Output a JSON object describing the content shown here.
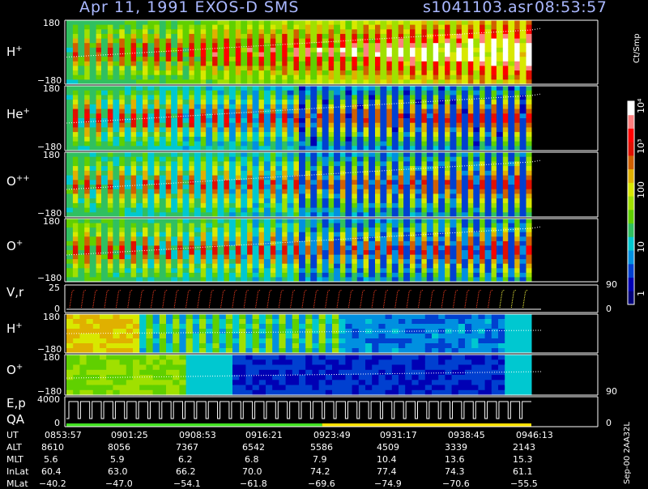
{
  "header": {
    "title": "Apr 11, 1991    EXOS-D SMS",
    "file": "s1041103.asr",
    "time": "08:53:57"
  },
  "colors": {
    "header_text": "#aab8ff",
    "axis": "#ffffff",
    "colormap": [
      "#00007a",
      "#0000b4",
      "#0040d0",
      "#0090e0",
      "#00c8d0",
      "#30c060",
      "#60d000",
      "#a0e000",
      "#d8e800",
      "#e0b000",
      "#d06000",
      "#e01000",
      "#ff0000",
      "#ff8080",
      "#ffffff"
    ]
  },
  "chart_data": {
    "type": "heatmap",
    "title": "Apr 11, 1991    EXOS-D SMS",
    "panels": [
      {
        "name": "H+",
        "label": "H",
        "sup": "+",
        "ytop": "180",
        "ybot": "−180"
      },
      {
        "name": "He+",
        "label": "He",
        "sup": "+",
        "ytop": "180",
        "ybot": "−180"
      },
      {
        "name": "O++",
        "label": "O",
        "sup": "++",
        "ytop": "180",
        "ybot": "−180"
      },
      {
        "name": "O+",
        "label": "O",
        "sup": "+",
        "ytop": "180",
        "ybot": "−180"
      },
      {
        "name": "V,r",
        "label": "V,r",
        "sup": "",
        "ytop": "25",
        "ybot": "0",
        "rtop": "90",
        "rbot": "0"
      },
      {
        "name": "H+ (lower)",
        "label": "H",
        "sup": "+",
        "ytop": "180",
        "ybot": "−180"
      },
      {
        "name": "O+ (lower)",
        "label": "O",
        "sup": "+",
        "ytop": "180",
        "ybot": "−180",
        "rbot": "90"
      },
      {
        "name": "E,p QA",
        "label": "E,p",
        "label2": "QA",
        "sup": "",
        "ytop": "4000",
        "ybot": "0",
        "rbot": "0"
      }
    ],
    "colorbar": {
      "title": "Ct/Smp",
      "ticks": [
        "10⁴",
        "10³",
        "100",
        "10",
        "1"
      ],
      "scale": "log",
      "range": [
        1,
        10000
      ]
    },
    "time_axis": {
      "UT": [
        "0853:57",
        "0901:25",
        "0908:53",
        "0916:21",
        "0923:49",
        "0931:17",
        "0938:45",
        "0946:13"
      ],
      "ALT": [
        "8610",
        "8056",
        "7367",
        "6542",
        "5586",
        "4509",
        "3339",
        "2143"
      ],
      "MLT": [
        "5.6",
        "5.9",
        "6.2",
        "6.8",
        "7.9",
        "10.4",
        "13.6",
        "15.3"
      ],
      "InLat": [
        "60.4",
        "63.0",
        "66.2",
        "70.0",
        "74.2",
        "77.4",
        "74.3",
        "61.1"
      ],
      "MLat": [
        "−40.2",
        "−47.0",
        "−54.1",
        "−61.8",
        "−69.6",
        "−74.9",
        "−70.6",
        "−55.5"
      ]
    },
    "row_labels": [
      "UT",
      "ALT",
      "MLT",
      "InLat",
      "MLat"
    ]
  },
  "footer": {
    "id": "Sep-00  2AA32L"
  }
}
